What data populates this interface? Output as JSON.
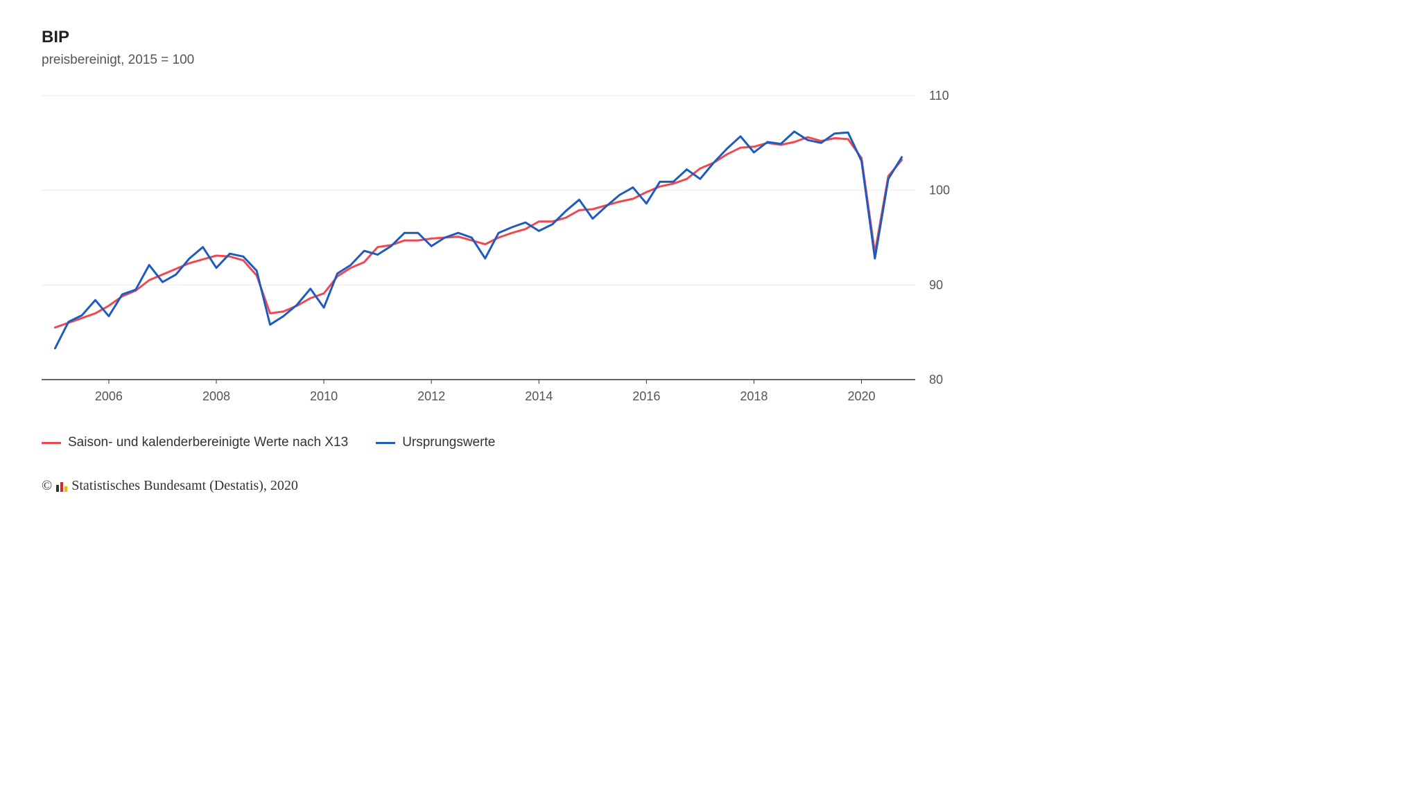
{
  "title": "BIP",
  "subtitle": "preisbereinigt, 2015 = 100",
  "chart": {
    "type": "line",
    "background_color": "#ffffff",
    "grid_color": "#ebebeb",
    "axis_color": "#333333",
    "axis_fontsize": 18,
    "line_width": 3,
    "x": {
      "min": 2004.75,
      "max": 2021.0,
      "ticks": [
        2006,
        2008,
        2010,
        2012,
        2014,
        2016,
        2018,
        2020
      ],
      "tick_labels": [
        "2006",
        "2008",
        "2010",
        "2012",
        "2014",
        "2016",
        "2018",
        "2020"
      ]
    },
    "y": {
      "min": 80,
      "max": 110,
      "ticks": [
        80,
        90,
        100,
        110
      ],
      "tick_labels": [
        "80",
        "90",
        "100",
        "110"
      ]
    },
    "x_values": [
      2005.0,
      2005.25,
      2005.5,
      2005.75,
      2006.0,
      2006.25,
      2006.5,
      2006.75,
      2007.0,
      2007.25,
      2007.5,
      2007.75,
      2008.0,
      2008.25,
      2008.5,
      2008.75,
      2009.0,
      2009.25,
      2009.5,
      2009.75,
      2010.0,
      2010.25,
      2010.5,
      2010.75,
      2011.0,
      2011.25,
      2011.5,
      2011.75,
      2012.0,
      2012.25,
      2012.5,
      2012.75,
      2013.0,
      2013.25,
      2013.5,
      2013.75,
      2014.0,
      2014.25,
      2014.5,
      2014.75,
      2015.0,
      2015.25,
      2015.5,
      2015.75,
      2016.0,
      2016.25,
      2016.5,
      2016.75,
      2017.0,
      2017.25,
      2017.5,
      2017.75,
      2018.0,
      2018.25,
      2018.5,
      2018.75,
      2019.0,
      2019.25,
      2019.5,
      2019.75,
      2020.0,
      2020.25,
      2020.5,
      2020.75
    ],
    "series": [
      {
        "name": "Saison- und kalenderbereinigte Werte nach X13",
        "color": "#f04851",
        "values": [
          85.5,
          86.0,
          86.5,
          87.0,
          87.8,
          88.8,
          89.4,
          90.5,
          91.1,
          91.7,
          92.3,
          92.7,
          93.1,
          93.0,
          92.6,
          91.0,
          87.0,
          87.2,
          87.8,
          88.6,
          89.1,
          90.9,
          91.8,
          92.4,
          94.0,
          94.2,
          94.7,
          94.7,
          94.9,
          95.0,
          95.1,
          94.7,
          94.3,
          95.0,
          95.5,
          95.9,
          96.7,
          96.7,
          97.1,
          97.9,
          98.0,
          98.4,
          98.8,
          99.1,
          99.8,
          100.4,
          100.7,
          101.2,
          102.3,
          102.9,
          103.8,
          104.5,
          104.6,
          105.0,
          104.8,
          105.1,
          105.6,
          105.2,
          105.5,
          105.4,
          103.4,
          93.4,
          101.5,
          103.2
        ]
      },
      {
        "name": "Ursprungswerte",
        "color": "#1f5bbf",
        "values": [
          83.3,
          86.1,
          86.8,
          88.4,
          86.7,
          89.0,
          89.5,
          92.1,
          90.3,
          91.1,
          92.8,
          94.0,
          91.8,
          93.3,
          93.0,
          91.5,
          85.8,
          86.7,
          87.9,
          89.6,
          87.6,
          91.2,
          92.1,
          93.6,
          93.2,
          94.1,
          95.5,
          95.5,
          94.1,
          95.0,
          95.5,
          95.0,
          92.8,
          95.5,
          96.1,
          96.6,
          95.7,
          96.4,
          97.8,
          99.0,
          97.0,
          98.3,
          99.5,
          100.3,
          98.6,
          100.9,
          100.9,
          102.2,
          101.2,
          102.9,
          104.4,
          105.7,
          104.0,
          105.1,
          104.9,
          106.2,
          105.3,
          105.0,
          106.0,
          106.1,
          103.1,
          92.8,
          101.2,
          103.5
        ]
      }
    ]
  },
  "legend": {
    "items": [
      {
        "label": "Saison- und kalenderbereinigte Werte nach X13",
        "color": "#f04851"
      },
      {
        "label": "Ursprungswerte",
        "color": "#1f5bbf"
      }
    ]
  },
  "source": {
    "copyright_symbol": "©",
    "text": "Statistisches Bundesamt (Destatis), 2020",
    "logo_colors": [
      "#333333",
      "#d62828",
      "#f5b700"
    ]
  }
}
